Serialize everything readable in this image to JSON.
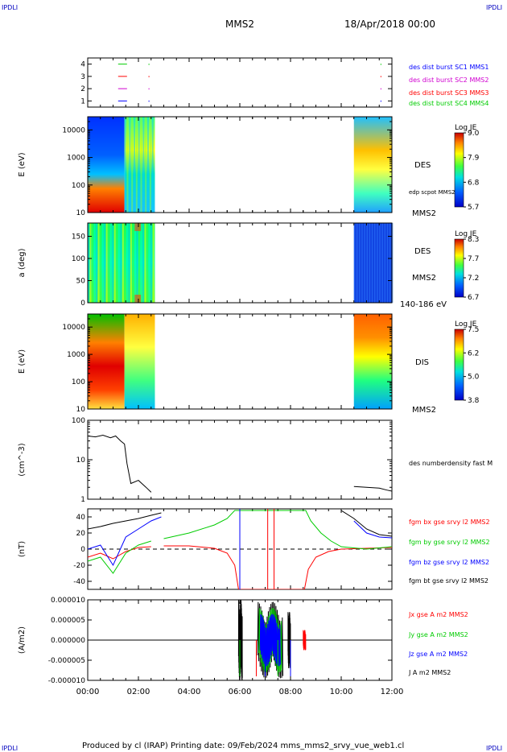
{
  "corner_label": "IPDLI",
  "header": {
    "title": "MMS2",
    "date": "18/Apr/2018 00:00"
  },
  "footer": "Produced by cl (IRAP)   Printing date: 09/Feb/2024   mms_mms2_srvy_vue_web1.cl",
  "colors": {
    "red": "#ff0000",
    "green": "#00cc00",
    "blue": "#0000ff",
    "magenta": "#d000d0",
    "black": "#000000"
  },
  "chart_data": [
    {
      "type": "scatter",
      "panel": "burst-availability",
      "y_ticks": [
        "1",
        "2",
        "3",
        "4"
      ],
      "ylim": [
        0.5,
        4.5
      ],
      "series": [
        {
          "name": "des dist burst SC1 MMS1",
          "color": "#0000ff",
          "level": 1
        },
        {
          "name": "des dist burst SC2 MMS2",
          "color": "#d000d0",
          "level": 2
        },
        {
          "name": "des dist burst SC3 MMS3",
          "color": "#ff0000",
          "level": 3
        },
        {
          "name": "des dist burst SC4 MMS4",
          "color": "#00cc00",
          "level": 4
        }
      ]
    },
    {
      "type": "heatmap",
      "panel": "des-energy-spectrogram",
      "ylabel": "E (eV)",
      "y_scale": "log",
      "ylim": [
        10,
        30000
      ],
      "y_ticks": [
        "10",
        "100",
        "1000",
        "10000"
      ],
      "label": "DES",
      "extra_label": "edp scpot MMS2",
      "sc_label": "MMS2",
      "colorbar": {
        "title": "Log JE",
        "ticks": [
          "9.0",
          "7.9",
          "6.8",
          "5.7"
        ]
      },
      "data_intervals_hours": [
        [
          0,
          2.65
        ],
        [
          10.5,
          12.0
        ]
      ]
    },
    {
      "type": "heatmap",
      "panel": "des-pitch-angle",
      "ylabel": "a (deg)",
      "ylim": [
        0,
        180
      ],
      "y_ticks": [
        "0",
        "50",
        "100",
        "150"
      ],
      "label": "DES",
      "sc_label": "MMS2",
      "energy_label": "140-186 eV",
      "colorbar": {
        "title": "Log JE",
        "ticks": [
          "8.3",
          "7.7",
          "7.2",
          "6.7"
        ]
      },
      "data_intervals_hours": [
        [
          0,
          2.65
        ],
        [
          10.5,
          12.0
        ]
      ]
    },
    {
      "type": "heatmap",
      "panel": "dis-energy-spectrogram",
      "ylabel": "E (eV)",
      "y_scale": "log",
      "ylim": [
        10,
        30000
      ],
      "y_ticks": [
        "10",
        "100",
        "1000",
        "10000"
      ],
      "label": "DIS",
      "sc_label": "MMS2",
      "colorbar": {
        "title": "Log JE",
        "ticks": [
          "7.5",
          "6.2",
          "5.0",
          "3.8"
        ]
      },
      "data_intervals_hours": [
        [
          0,
          2.65
        ],
        [
          10.5,
          12.0
        ]
      ]
    },
    {
      "type": "line",
      "panel": "density",
      "ylabel": "(cm^-3)",
      "y_scale": "log",
      "ylim": [
        1,
        100
      ],
      "y_ticks": [
        "1",
        "10",
        "100"
      ],
      "series": [
        {
          "name": "des numberdensity fast M",
          "color": "#000000",
          "x": [
            0,
            0.3,
            0.6,
            0.9,
            1.1,
            1.3,
            1.45,
            1.55,
            1.7,
            2.0,
            2.3,
            2.5,
            10.5,
            11.0,
            11.5,
            11.8,
            12.0
          ],
          "y": [
            40,
            38,
            42,
            36,
            40,
            30,
            25,
            8,
            2.5,
            3,
            2,
            1.5,
            2.1,
            2.0,
            1.9,
            1.7,
            1.6
          ]
        }
      ]
    },
    {
      "type": "line",
      "panel": "magnetic-field",
      "ylabel": "(nT)",
      "ylim": [
        -50,
        50
      ],
      "y_ticks": [
        "-40",
        "-20",
        "0",
        "20",
        "40"
      ],
      "series": [
        {
          "name": "fgm bx gse srvy l2 MMS2",
          "color": "#ff0000",
          "x": [
            0,
            0.5,
            1.0,
            1.5,
            2.0,
            2.5,
            3.0,
            4.0,
            5.0,
            5.5,
            5.8,
            5.95,
            8.55,
            8.7,
            9.0,
            9.5,
            10.0,
            11.0,
            12.0
          ],
          "y": [
            -10,
            -5,
            -12,
            -3,
            2,
            3,
            4,
            4,
            1,
            -5,
            -20,
            -50,
            -50,
            -25,
            -10,
            -3,
            0,
            1,
            2
          ]
        },
        {
          "name": "fgm by gse srvy l2 MMS2",
          "color": "#00cc00",
          "x": [
            0,
            0.5,
            1.0,
            1.5,
            2.0,
            2.5,
            3.0,
            4.0,
            5.0,
            5.5,
            5.8,
            8.6,
            8.8,
            9.2,
            9.6,
            10.0,
            11.0,
            12.0
          ],
          "y": [
            -15,
            -10,
            -30,
            -5,
            5,
            10,
            13,
            20,
            30,
            38,
            48,
            48,
            35,
            20,
            10,
            3,
            0,
            3
          ]
        },
        {
          "name": "fgm bz gse srvy l2 MMS2",
          "color": "#0000ff",
          "x": [
            0,
            0.5,
            1.0,
            1.5,
            2.0,
            2.5,
            2.9,
            10.5,
            11.0,
            11.5,
            12.0
          ],
          "y": [
            0,
            5,
            -20,
            15,
            25,
            35,
            40,
            35,
            20,
            15,
            14
          ]
        },
        {
          "name": "fgm bt gse srvy l2 MMS2",
          "color": "#000000",
          "x": [
            0,
            0.5,
            1.0,
            1.5,
            2.0,
            2.5,
            2.9,
            10.0,
            10.5,
            11.0,
            11.5,
            12.0
          ],
          "y": [
            25,
            28,
            32,
            35,
            38,
            42,
            45,
            48,
            38,
            25,
            18,
            16
          ]
        }
      ],
      "reference_line": 0
    },
    {
      "type": "line",
      "panel": "current-density",
      "ylabel": "(A/m2)",
      "ylim": [
        -1e-05,
        1e-05
      ],
      "y_ticks": [
        "-0.000010",
        "-0.000005",
        "0.000000",
        "0.000005",
        "0.000010"
      ],
      "series": [
        {
          "name": "Jx gse A m2 MMS2",
          "color": "#ff0000"
        },
        {
          "name": "Jy gse A m2 MMS2",
          "color": "#00cc00"
        },
        {
          "name": "Jz gse A m2 MMS2",
          "color": "#0000ff"
        },
        {
          "name": "J A m2 MMS2",
          "color": "#000000"
        }
      ],
      "x_ticks": [
        "00:00",
        "02:00",
        "04:00",
        "06:00",
        "08:00",
        "10:00",
        "12:00"
      ],
      "xlim_hours": [
        0,
        12
      ]
    }
  ]
}
